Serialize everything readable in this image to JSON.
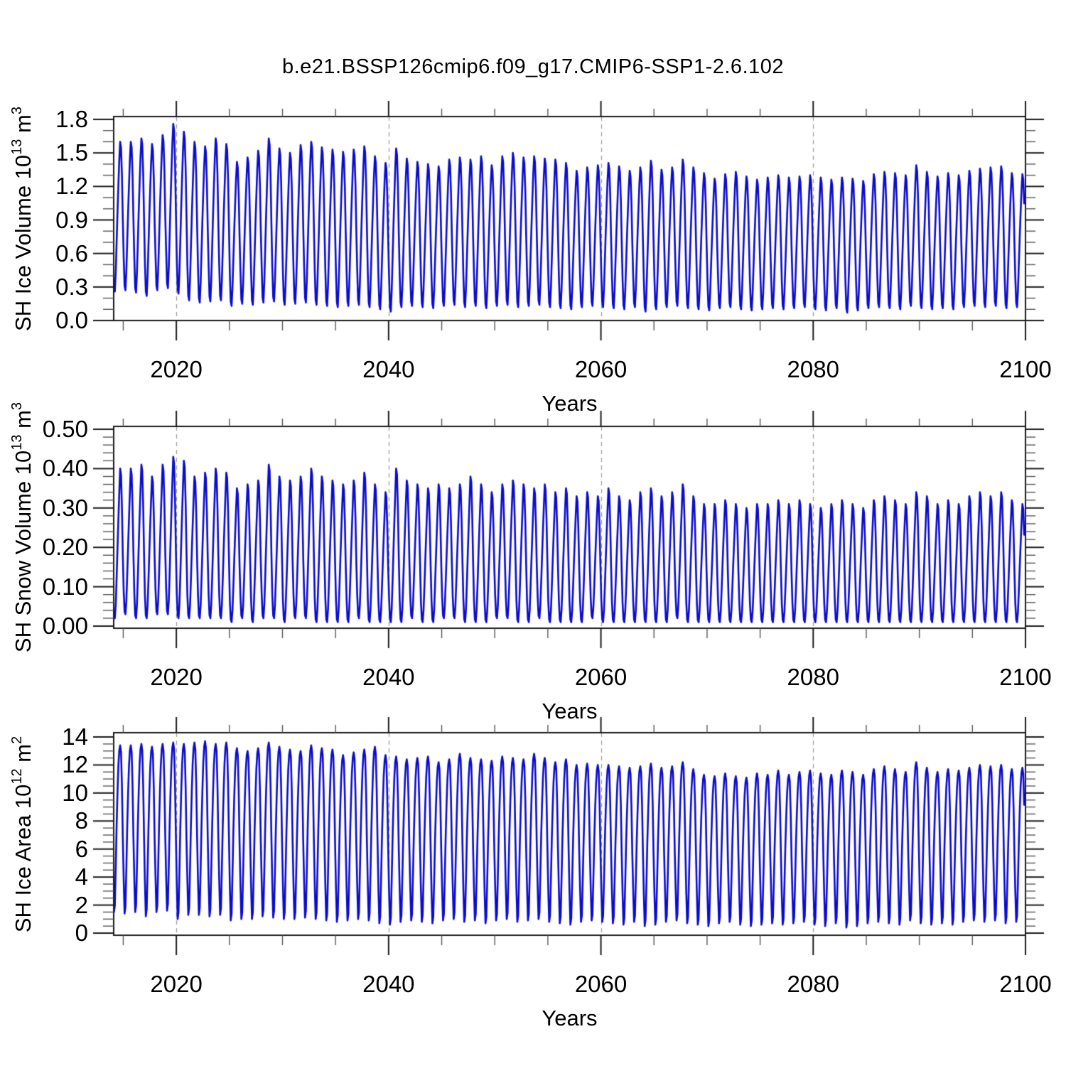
{
  "title": "b.e21.BSSP126cmip6.f09_g17.CMIP6-SSP1-2.6.102",
  "chart_data": {
    "type": "line",
    "line_color": "#0a0acf",
    "background": "#ffffff",
    "frame_color": "#1a1a1a",
    "grid_color": "#999999",
    "grid_style": "dashed-vertical",
    "legend": "none",
    "x_axis": {
      "label": "Years",
      "range": [
        2014.1,
        2100
      ],
      "ticks": [
        2020,
        2040,
        2060,
        2080,
        2100
      ],
      "tick_labels": [
        "2020",
        "2040",
        "2060",
        "2080",
        "2100"
      ],
      "minor_step": 5,
      "gridlines": [
        2020,
        2040,
        2060,
        2080
      ]
    },
    "years": [
      2014,
      2015,
      2016,
      2017,
      2018,
      2019,
      2020,
      2021,
      2022,
      2023,
      2024,
      2025,
      2026,
      2027,
      2028,
      2029,
      2030,
      2031,
      2032,
      2033,
      2034,
      2035,
      2036,
      2037,
      2038,
      2039,
      2040,
      2041,
      2042,
      2043,
      2044,
      2045,
      2046,
      2047,
      2048,
      2049,
      2050,
      2051,
      2052,
      2053,
      2054,
      2055,
      2056,
      2057,
      2058,
      2059,
      2060,
      2061,
      2062,
      2063,
      2064,
      2065,
      2066,
      2067,
      2068,
      2069,
      2070,
      2071,
      2072,
      2073,
      2074,
      2075,
      2076,
      2077,
      2078,
      2079,
      2080,
      2081,
      2082,
      2083,
      2084,
      2085,
      2086,
      2087,
      2088,
      2089,
      2090,
      2091,
      2092,
      2093,
      2094,
      2095,
      2096,
      2097,
      2098,
      2099
    ],
    "series_note": "Monthly seasonal cycle reconstructed as annual_min + (annual_max - annual_min) * seasonal_shape[month]; data runs Jan 2014 (clipped at left axis) to Nov 2099.",
    "panels": [
      {
        "id": "sh-ice-volume",
        "ylabel": "SH Ice Volume 10^13 m^3",
        "ylabel_parts": [
          {
            "t": "SH Ice Volume 10"
          },
          {
            "t": "13",
            "sup": true
          },
          {
            "t": " m"
          },
          {
            "t": "3",
            "sup": true
          }
        ],
        "y_axis": {
          "range": [
            0,
            1.826
          ],
          "ticks": [
            0,
            0.3,
            0.6,
            0.9,
            1.2,
            1.5,
            1.8
          ],
          "tick_labels": [
            "0.0",
            "0.3",
            "0.6",
            "0.9",
            "1.2",
            "1.5",
            "1.8"
          ],
          "major_step": 0.3,
          "minor_step": 0.1
        },
        "xlabel": "Years",
        "seasonal_shape": [
          0.22,
          0.03,
          0.0,
          0.13,
          0.33,
          0.53,
          0.71,
          0.88,
          1.0,
          0.96,
          0.78,
          0.48
        ],
        "annual_max": [
          1.6,
          1.6,
          1.63,
          1.58,
          1.66,
          1.76,
          1.69,
          1.6,
          1.56,
          1.63,
          1.58,
          1.42,
          1.46,
          1.52,
          1.63,
          1.54,
          1.5,
          1.57,
          1.6,
          1.55,
          1.53,
          1.51,
          1.53,
          1.56,
          1.47,
          1.41,
          1.54,
          1.45,
          1.42,
          1.4,
          1.38,
          1.44,
          1.46,
          1.44,
          1.47,
          1.39,
          1.47,
          1.5,
          1.46,
          1.47,
          1.45,
          1.44,
          1.41,
          1.34,
          1.37,
          1.39,
          1.41,
          1.38,
          1.34,
          1.37,
          1.43,
          1.35,
          1.37,
          1.44,
          1.37,
          1.32,
          1.27,
          1.31,
          1.33,
          1.29,
          1.26,
          1.28,
          1.3,
          1.28,
          1.29,
          1.3,
          1.28,
          1.26,
          1.28,
          1.27,
          1.25,
          1.31,
          1.33,
          1.32,
          1.3,
          1.39,
          1.33,
          1.29,
          1.32,
          1.3,
          1.34,
          1.36,
          1.37,
          1.38,
          1.32,
          1.31
        ],
        "annual_min": [
          0.26,
          0.27,
          0.25,
          0.22,
          0.27,
          0.29,
          0.24,
          0.18,
          0.16,
          0.17,
          0.18,
          0.13,
          0.15,
          0.14,
          0.16,
          0.17,
          0.14,
          0.15,
          0.16,
          0.14,
          0.13,
          0.12,
          0.13,
          0.14,
          0.12,
          0.1,
          0.08,
          0.12,
          0.13,
          0.12,
          0.11,
          0.13,
          0.14,
          0.12,
          0.13,
          0.11,
          0.13,
          0.14,
          0.12,
          0.13,
          0.14,
          0.12,
          0.11,
          0.1,
          0.12,
          0.13,
          0.12,
          0.11,
          0.1,
          0.12,
          0.08,
          0.1,
          0.12,
          0.13,
          0.11,
          0.1,
          0.09,
          0.11,
          0.12,
          0.1,
          0.09,
          0.1,
          0.11,
          0.1,
          0.11,
          0.12,
          0.1,
          0.09,
          0.11,
          0.07,
          0.09,
          0.11,
          0.12,
          0.11,
          0.1,
          0.13,
          0.11,
          0.1,
          0.11,
          0.1,
          0.12,
          0.13,
          0.12,
          0.13,
          0.11,
          0.12
        ]
      },
      {
        "id": "sh-snow-volume",
        "ylabel": "SH Snow Volume 10^13 m^3",
        "ylabel_parts": [
          {
            "t": "SH Snow Volume 10"
          },
          {
            "t": "13",
            "sup": true
          },
          {
            "t": " m"
          },
          {
            "t": "3",
            "sup": true
          }
        ],
        "y_axis": {
          "range": [
            0,
            0.505
          ],
          "ticks": [
            0,
            0.1,
            0.2,
            0.3,
            0.4,
            0.5
          ],
          "tick_labels": [
            "0.00",
            "0.10",
            "0.20",
            "0.30",
            "0.40",
            "0.50"
          ],
          "major_step": 0.1,
          "minor_step": 0.02
        },
        "xlabel": "Years",
        "seasonal_shape": [
          0.16,
          0.02,
          0.0,
          0.09,
          0.27,
          0.47,
          0.66,
          0.84,
          1.0,
          0.96,
          0.74,
          0.42
        ],
        "annual_max": [
          0.4,
          0.4,
          0.41,
          0.38,
          0.41,
          0.43,
          0.42,
          0.38,
          0.39,
          0.4,
          0.39,
          0.35,
          0.36,
          0.37,
          0.41,
          0.38,
          0.37,
          0.38,
          0.4,
          0.38,
          0.37,
          0.36,
          0.37,
          0.39,
          0.36,
          0.34,
          0.4,
          0.37,
          0.36,
          0.35,
          0.36,
          0.35,
          0.36,
          0.38,
          0.36,
          0.34,
          0.36,
          0.37,
          0.36,
          0.35,
          0.36,
          0.34,
          0.35,
          0.33,
          0.34,
          0.33,
          0.35,
          0.33,
          0.32,
          0.34,
          0.35,
          0.33,
          0.34,
          0.36,
          0.33,
          0.31,
          0.31,
          0.32,
          0.31,
          0.3,
          0.31,
          0.31,
          0.32,
          0.31,
          0.32,
          0.31,
          0.3,
          0.31,
          0.32,
          0.31,
          0.3,
          0.32,
          0.33,
          0.32,
          0.31,
          0.34,
          0.33,
          0.31,
          0.32,
          0.31,
          0.33,
          0.34,
          0.33,
          0.34,
          0.32,
          0.31
        ],
        "annual_min": [
          0.02,
          0.03,
          0.02,
          0.02,
          0.03,
          0.03,
          0.02,
          0.02,
          0.02,
          0.02,
          0.02,
          0.01,
          0.02,
          0.01,
          0.02,
          0.02,
          0.01,
          0.02,
          0.02,
          0.01,
          0.01,
          0.01,
          0.01,
          0.02,
          0.01,
          0.01,
          0.01,
          0.01,
          0.02,
          0.01,
          0.01,
          0.02,
          0.02,
          0.01,
          0.01,
          0.01,
          0.02,
          0.02,
          0.01,
          0.01,
          0.02,
          0.01,
          0.01,
          0.01,
          0.01,
          0.02,
          0.01,
          0.01,
          0.01,
          0.01,
          0.01,
          0.01,
          0.01,
          0.02,
          0.01,
          0.01,
          0.01,
          0.01,
          0.01,
          0.01,
          0.01,
          0.01,
          0.01,
          0.01,
          0.01,
          0.01,
          0.01,
          0.01,
          0.01,
          0.01,
          0.01,
          0.01,
          0.01,
          0.01,
          0.01,
          0.01,
          0.01,
          0.01,
          0.01,
          0.01,
          0.01,
          0.01,
          0.01,
          0.01,
          0.01,
          0.01
        ]
      },
      {
        "id": "sh-ice-area",
        "ylabel": "SH Ice Area 10^12 m^2",
        "ylabel_parts": [
          {
            "t": "SH Ice Area 10"
          },
          {
            "t": "12",
            "sup": true
          },
          {
            "t": " m"
          },
          {
            "t": "2",
            "sup": true
          }
        ],
        "y_axis": {
          "range": [
            0,
            14.15
          ],
          "ticks": [
            0,
            2,
            4,
            6,
            8,
            10,
            12,
            14
          ],
          "tick_labels": [
            "0",
            "2",
            "4",
            "6",
            "8",
            "10",
            "12",
            "14"
          ],
          "major_step": 2,
          "minor_step": 0.5
        },
        "xlabel": "Years",
        "seasonal_shape": [
          0.2,
          0.0,
          0.04,
          0.27,
          0.52,
          0.72,
          0.88,
          0.97,
          1.0,
          0.96,
          0.76,
          0.45
        ],
        "annual_max": [
          13.4,
          13.4,
          13.5,
          13.3,
          13.5,
          13.6,
          13.5,
          13.6,
          13.7,
          13.5,
          13.6,
          13.2,
          13.0,
          13.2,
          13.6,
          13.3,
          13.1,
          13.0,
          13.4,
          13.2,
          13.1,
          12.7,
          12.9,
          13.1,
          13.3,
          12.7,
          12.6,
          12.4,
          12.5,
          12.6,
          12.2,
          12.4,
          12.8,
          12.5,
          12.4,
          12.3,
          12.6,
          12.5,
          12.4,
          12.8,
          12.5,
          12.2,
          12.4,
          12.0,
          12.1,
          12.0,
          12.0,
          11.9,
          11.8,
          11.9,
          12.1,
          11.8,
          11.9,
          12.2,
          11.7,
          11.3,
          11.2,
          11.4,
          11.2,
          11.1,
          11.4,
          11.3,
          11.6,
          11.3,
          11.5,
          11.6,
          11.4,
          11.3,
          11.6,
          11.5,
          11.3,
          11.7,
          11.9,
          11.7,
          11.5,
          12.2,
          11.8,
          11.5,
          11.7,
          11.6,
          11.8,
          12.0,
          11.9,
          12.0,
          11.7,
          11.8
        ],
        "annual_min": [
          1.5,
          1.4,
          1.5,
          1.2,
          1.5,
          1.6,
          1.0,
          1.3,
          1.3,
          1.2,
          1.3,
          0.9,
          1.0,
          1.0,
          1.2,
          1.1,
          1.0,
          1.0,
          1.1,
          1.0,
          0.9,
          0.8,
          0.9,
          1.0,
          0.9,
          0.7,
          0.6,
          0.8,
          0.9,
          0.8,
          0.7,
          0.9,
          1.0,
          0.8,
          0.9,
          0.7,
          0.9,
          1.0,
          0.8,
          0.9,
          1.0,
          0.8,
          0.7,
          0.6,
          0.8,
          0.9,
          0.8,
          0.7,
          0.6,
          0.8,
          0.5,
          0.6,
          0.8,
          0.9,
          0.7,
          0.6,
          0.5,
          0.7,
          0.8,
          0.6,
          0.5,
          0.6,
          0.7,
          0.6,
          0.7,
          0.8,
          0.6,
          0.5,
          0.7,
          0.4,
          0.5,
          0.7,
          0.8,
          0.7,
          0.6,
          0.9,
          0.7,
          0.6,
          0.7,
          0.6,
          0.8,
          0.9,
          0.8,
          0.9,
          0.7,
          0.8
        ]
      }
    ]
  }
}
